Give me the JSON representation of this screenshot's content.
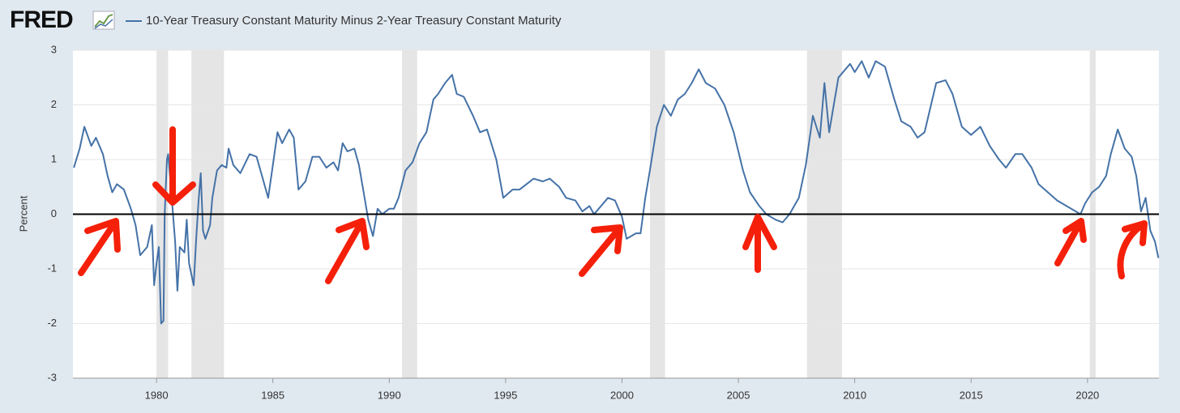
{
  "logo": "FRED",
  "chart_data": {
    "type": "line",
    "ylabel": "Percent",
    "x": [
      1976.45,
      1976.7,
      1976.9,
      1977.2,
      1977.4,
      1977.7,
      1977.9,
      1978.1,
      1978.3,
      1978.6,
      1978.9,
      1979.1,
      1979.3,
      1979.6,
      1979.8,
      1979.9,
      1980.0,
      1980.1,
      1980.2,
      1980.3,
      1980.35,
      1980.45,
      1980.5,
      1980.6,
      1980.8,
      1980.9,
      1981.0,
      1981.2,
      1981.3,
      1981.4,
      1981.6,
      1981.7,
      1981.8,
      1981.9,
      1982.0,
      1982.1,
      1982.3,
      1982.4,
      1982.6,
      1982.8,
      1983.0,
      1983.1,
      1983.3,
      1983.6,
      1984.0,
      1984.3,
      1984.6,
      1984.8,
      1985.0,
      1985.2,
      1985.4,
      1985.7,
      1985.9,
      1986.1,
      1986.4,
      1986.7,
      1987.0,
      1987.3,
      1987.6,
      1987.8,
      1988.0,
      1988.2,
      1988.5,
      1988.7,
      1988.9,
      1989.1,
      1989.3,
      1989.5,
      1989.7,
      1990.0,
      1990.2,
      1990.4,
      1990.7,
      1991.0,
      1991.3,
      1991.6,
      1991.9,
      1992.1,
      1992.4,
      1992.7,
      1992.9,
      1993.2,
      1993.6,
      1993.9,
      1994.2,
      1994.6,
      1994.9,
      1995.3,
      1995.6,
      1995.9,
      1996.2,
      1996.6,
      1996.9,
      1997.3,
      1997.6,
      1998.0,
      1998.3,
      1998.6,
      1998.8,
      1999.0,
      1999.4,
      1999.7,
      2000.0,
      2000.2,
      2000.6,
      2000.8,
      2001.0,
      2001.2,
      2001.5,
      2001.8,
      2002.1,
      2002.4,
      2002.7,
      2003.0,
      2003.3,
      2003.6,
      2004.0,
      2004.4,
      2004.8,
      2005.2,
      2005.5,
      2005.9,
      2006.2,
      2006.6,
      2006.9,
      2007.2,
      2007.6,
      2007.9,
      2008.2,
      2008.5,
      2008.7,
      2008.9,
      2009.3,
      2009.8,
      2010.0,
      2010.3,
      2010.6,
      2010.9,
      2011.3,
      2011.7,
      2012.0,
      2012.4,
      2012.7,
      2013.0,
      2013.5,
      2013.9,
      2014.2,
      2014.6,
      2015.0,
      2015.4,
      2015.8,
      2016.2,
      2016.5,
      2016.9,
      2017.2,
      2017.6,
      2017.9,
      2018.3,
      2018.7,
      2019.1,
      2019.5,
      2019.7,
      2019.9,
      2020.2,
      2020.5,
      2020.8,
      2021.0,
      2021.3,
      2021.6,
      2021.9,
      2022.1,
      2022.3,
      2022.5,
      2022.7,
      2022.9,
      2023.05
    ],
    "series": [
      {
        "name": "10-Year Treasury Constant Maturity Minus 2-Year Treasury Constant Maturity",
        "color": "#4572a7",
        "values": [
          0.85,
          1.2,
          1.6,
          1.25,
          1.4,
          1.1,
          0.7,
          0.4,
          0.55,
          0.45,
          0.1,
          -0.2,
          -0.75,
          -0.6,
          -0.2,
          -1.3,
          -0.9,
          -0.6,
          -2.0,
          -1.95,
          0.0,
          1.0,
          1.1,
          0.6,
          -0.5,
          -1.4,
          -0.6,
          -0.7,
          -0.1,
          -0.9,
          -1.3,
          -0.5,
          0.2,
          0.75,
          -0.3,
          -0.45,
          -0.2,
          0.3,
          0.8,
          0.9,
          0.85,
          1.2,
          0.9,
          0.75,
          1.1,
          1.05,
          0.6,
          0.3,
          0.9,
          1.5,
          1.3,
          1.55,
          1.4,
          0.45,
          0.6,
          1.05,
          1.05,
          0.85,
          0.95,
          0.8,
          1.3,
          1.15,
          1.2,
          0.9,
          0.4,
          -0.1,
          -0.4,
          0.1,
          0.0,
          0.1,
          0.1,
          0.3,
          0.8,
          0.95,
          1.3,
          1.5,
          2.1,
          2.2,
          2.4,
          2.55,
          2.2,
          2.15,
          1.8,
          1.5,
          1.55,
          1.0,
          0.3,
          0.45,
          0.45,
          0.55,
          0.65,
          0.6,
          0.65,
          0.5,
          0.3,
          0.25,
          0.05,
          0.15,
          0.0,
          0.1,
          0.3,
          0.25,
          -0.05,
          -0.45,
          -0.35,
          -0.35,
          0.3,
          0.8,
          1.6,
          2.0,
          1.8,
          2.1,
          2.2,
          2.4,
          2.65,
          2.4,
          2.3,
          2.0,
          1.5,
          0.8,
          0.4,
          0.15,
          0.0,
          -0.1,
          -0.15,
          0.0,
          0.3,
          0.9,
          1.8,
          1.4,
          2.4,
          1.5,
          2.5,
          2.75,
          2.6,
          2.8,
          2.5,
          2.8,
          2.7,
          2.1,
          1.7,
          1.6,
          1.4,
          1.5,
          2.4,
          2.45,
          2.2,
          1.6,
          1.45,
          1.6,
          1.25,
          1.0,
          0.85,
          1.1,
          1.1,
          0.85,
          0.55,
          0.4,
          0.25,
          0.15,
          0.05,
          0.0,
          0.2,
          0.4,
          0.5,
          0.7,
          1.1,
          1.55,
          1.2,
          1.05,
          0.7,
          0.05,
          0.3,
          -0.3,
          -0.5,
          -0.8
        ]
      }
    ],
    "xlim": [
      1976.41,
      2023.07
    ],
    "ylim": [
      -3,
      3
    ],
    "xticks": [
      1980,
      1985,
      1990,
      1995,
      2000,
      2005,
      2010,
      2015,
      2020
    ],
    "yticks": [
      -3,
      -2,
      -1,
      0,
      1,
      2,
      3
    ],
    "grid": true,
    "reference_line": 0,
    "shaded_periods": [
      [
        1980.0,
        1980.5
      ],
      [
        1981.5,
        1982.9
      ],
      [
        1990.55,
        1991.2
      ],
      [
        2001.2,
        2001.85
      ],
      [
        2007.95,
        2009.45
      ],
      [
        2020.1,
        2020.35
      ]
    ]
  }
}
